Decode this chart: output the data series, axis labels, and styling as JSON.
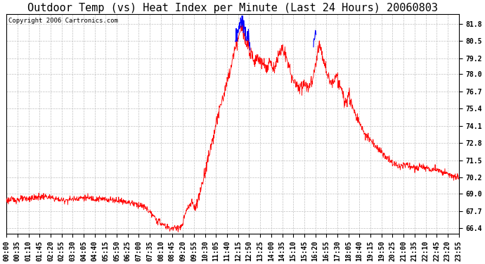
{
  "title": "Outdoor Temp (vs) Heat Index per Minute (Last 24 Hours) 20060803",
  "copyright": "Copyright 2006 Cartronics.com",
  "yticks": [
    66.4,
    67.7,
    69.0,
    70.2,
    71.5,
    72.8,
    74.1,
    75.4,
    76.7,
    78.0,
    79.2,
    80.5,
    81.8
  ],
  "ylabel_right": [
    "66.4",
    "67.7",
    "69.0",
    "70.2",
    "71.5",
    "72.8",
    "74.1",
    "75.4",
    "76.7",
    "78.0",
    "79.2",
    "80.5",
    "81.8"
  ],
  "ylim": [
    66.0,
    82.5
  ],
  "xtick_labels": [
    "00:00",
    "00:35",
    "01:10",
    "01:45",
    "02:20",
    "02:55",
    "03:30",
    "04:05",
    "04:40",
    "05:15",
    "05:50",
    "06:25",
    "07:00",
    "07:35",
    "08:10",
    "08:45",
    "09:20",
    "09:55",
    "10:30",
    "11:05",
    "11:40",
    "12:15",
    "12:50",
    "13:25",
    "14:00",
    "14:35",
    "15:10",
    "15:45",
    "16:20",
    "16:55",
    "17:30",
    "18:05",
    "18:40",
    "19:15",
    "19:50",
    "20:25",
    "21:00",
    "21:35",
    "22:10",
    "22:45",
    "23:20",
    "23:55"
  ],
  "red_color": "#ff0000",
  "blue_color": "#0000ff",
  "bg_color": "#ffffff",
  "grid_color": "#c0c0c0",
  "title_fontsize": 11,
  "copyright_fontsize": 6.5,
  "tick_fontsize": 7
}
